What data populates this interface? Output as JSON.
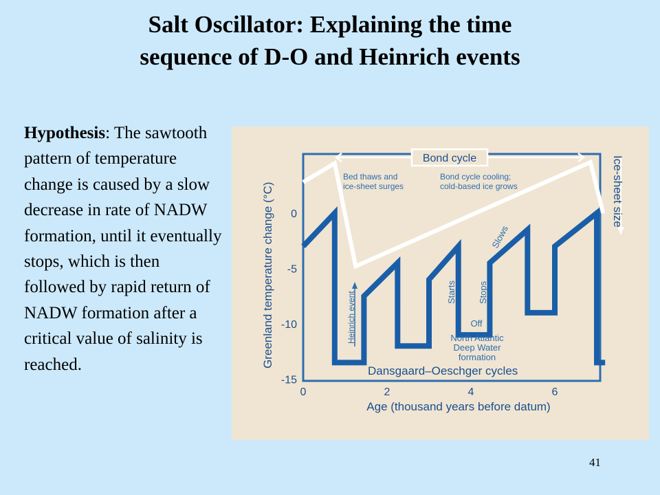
{
  "slide": {
    "title_line1": "Salt Oscillator: Explaining the time",
    "title_line2": "sequence of D-O and Heinrich events",
    "hypothesis_label": "Hypothesis",
    "hypothesis_text": ": The sawtooth pattern of temperature change is caused by a slow decrease in rate of NADW formation, until it eventually stops, which is then followed by rapid return of NADW formation after a critical value of salinity is reached.",
    "page_number": "41"
  },
  "chart_data": {
    "type": "line",
    "xlabel": "Age (thousand years before datum)",
    "ylabel": "Greenland temperature change (°C)",
    "xlim": [
      0,
      7.2
    ],
    "ylim": [
      -16,
      3
    ],
    "x_ticks": [
      "0",
      "2",
      "4",
      "6"
    ],
    "y_ticks": [
      "0",
      "-5",
      "-10",
      "-15"
    ],
    "background": "#f0e5d2",
    "frame_color": "#2c6db0",
    "series": [
      {
        "color": "#1a5ea8",
        "x": [
          0,
          0.75,
          0.75,
          1.45,
          1.45,
          2.25,
          2.25,
          3.0,
          3.0,
          3.7,
          3.7,
          4.45,
          4.45,
          4.45,
          5.35,
          5.35,
          6.0,
          6.0,
          7.0,
          7.0,
          7.2
        ],
        "y": [
          -3,
          0,
          -13.5,
          -13.5,
          -7.5,
          -4.5,
          -12,
          -12,
          -6,
          -3,
          -11,
          -11,
          -4.5,
          -4.5,
          -1.5,
          -9,
          -9,
          -3,
          0,
          -13.5,
          -13.5
        ]
      },
      {
        "color": "#ffffff",
        "x": [
          0,
          0.75,
          1.25,
          6.85,
          7.15
        ],
        "y": [
          2.8,
          4.5,
          -4.8,
          4.6,
          0
        ]
      }
    ],
    "annotations": {
      "bond_cycle": "Bond cycle",
      "bed_thaws_1": "Bed thaws and",
      "bed_thaws_2": "ice-sheet surges",
      "bond_cooling_1": "Bond cycle cooling;",
      "bond_cooling_2": "cold-based ice grows",
      "ice_sheet_size": "Ice-sheet size",
      "heinrich_event": "Heinrich event",
      "starts": "Starts",
      "stops": "Stops",
      "slows": "Slows",
      "off": "Off",
      "nadw_1": "North Atlantic",
      "nadw_2": "Deep Water",
      "nadw_3": "formation",
      "do_cycles": "Dansgaard–Oeschger cycles"
    }
  }
}
